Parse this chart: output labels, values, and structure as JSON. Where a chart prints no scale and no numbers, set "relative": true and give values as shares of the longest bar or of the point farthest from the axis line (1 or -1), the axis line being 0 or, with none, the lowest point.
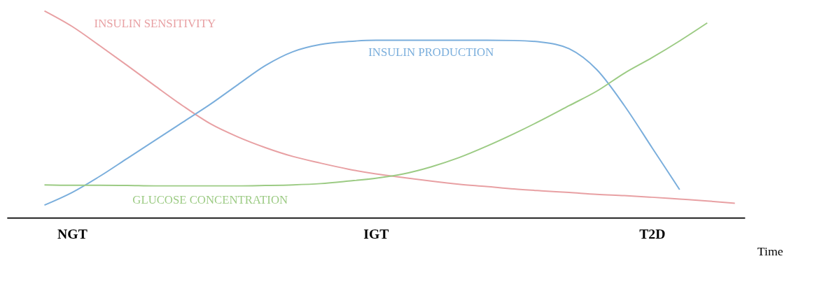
{
  "chart_data": {
    "type": "line",
    "relative": true,
    "xlabel": "Time",
    "line_style": "solid",
    "categories": [
      null,
      null,
      "NGT",
      null,
      null,
      null,
      null,
      null,
      null,
      null,
      null,
      null,
      null,
      "IGT",
      null,
      null,
      null,
      null,
      null,
      null,
      null,
      null,
      null,
      "T2D",
      null,
      null,
      null
    ],
    "series": [
      {
        "name": "INSULIN SENSITIVITY",
        "color": "#e8a0a3",
        "values": [
          null,
          1.0,
          0.925,
          0.832,
          0.736,
          0.638,
          0.542,
          0.455,
          0.391,
          0.339,
          0.296,
          0.264,
          0.235,
          0.212,
          0.194,
          0.177,
          0.162,
          0.151,
          0.139,
          0.13,
          0.122,
          0.113,
          0.107,
          0.099,
          0.09,
          0.081,
          0.07
        ]
      },
      {
        "name": "INSULIN PRODUCTION",
        "color": "#7aaedc",
        "values": [
          null,
          0.061,
          0.122,
          0.2,
          0.287,
          0.374,
          0.461,
          0.548,
          0.643,
          0.736,
          0.803,
          0.838,
          0.852,
          0.858,
          0.858,
          0.858,
          0.858,
          0.858,
          0.857,
          0.849,
          0.817,
          0.716,
          0.542,
          0.339,
          0.136,
          null,
          null
        ]
      },
      {
        "name": "GLUCOSE CONCENTRATION",
        "color": "#9ccb84",
        "values": [
          null,
          0.159,
          0.157,
          0.157,
          0.156,
          0.154,
          0.154,
          0.154,
          0.154,
          0.156,
          0.159,
          0.165,
          0.177,
          0.191,
          0.212,
          0.246,
          0.29,
          0.345,
          0.406,
          0.472,
          0.542,
          0.612,
          0.699,
          0.774,
          0.855,
          0.942,
          null
        ]
      }
    ]
  }
}
